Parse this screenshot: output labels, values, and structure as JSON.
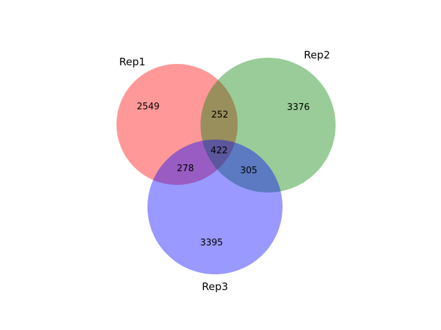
{
  "venn": {
    "sets": [
      {
        "key": "rep1",
        "label": "Rep1",
        "color": "#ff0000"
      },
      {
        "key": "rep2",
        "label": "Rep2",
        "color": "#008000"
      },
      {
        "key": "rep3",
        "label": "Rep3",
        "color": "#0000ff"
      }
    ],
    "fill_opacity": 0.4,
    "regions": {
      "rep1_only": "2549",
      "rep2_only": "3376",
      "rep3_only": "3395",
      "rep1_rep2": "252",
      "rep1_rep3": "278",
      "rep2_rep3": "305",
      "rep1_rep2_rep3": "422"
    }
  }
}
